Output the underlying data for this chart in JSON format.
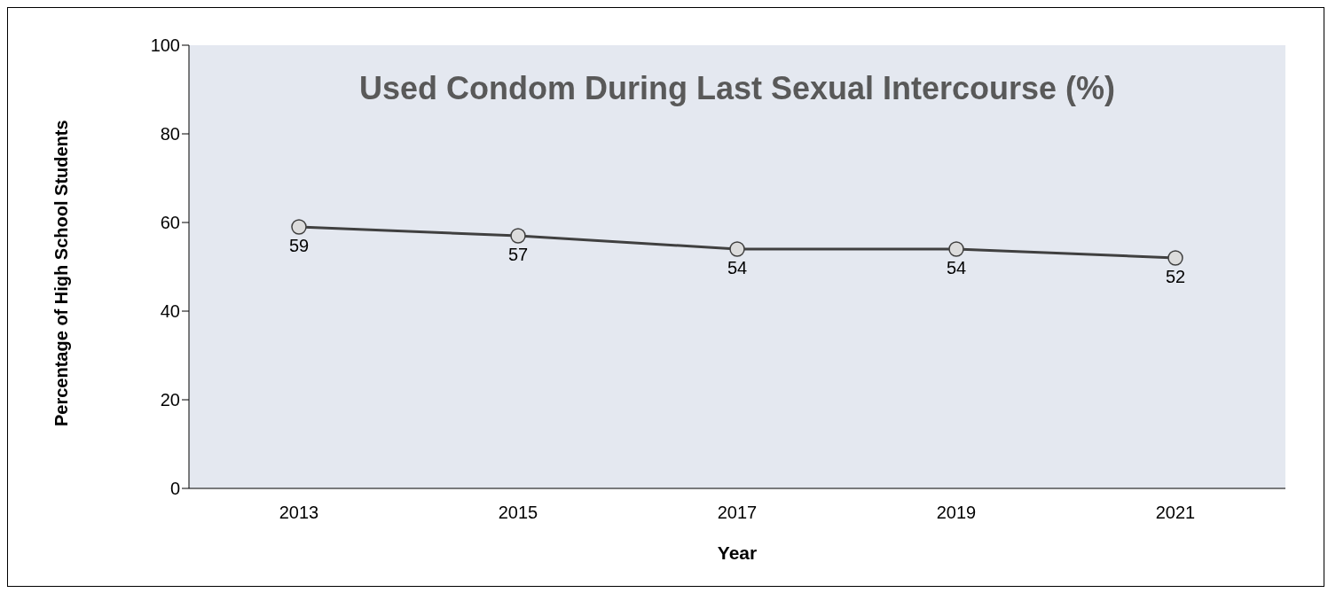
{
  "chart_data": {
    "type": "line",
    "title": "Used Condom During Last Sexual Intercourse (%)",
    "xlabel": "Year",
    "ylabel": "Percentage of High School Students",
    "categories": [
      "2013",
      "2015",
      "2017",
      "2019",
      "2021"
    ],
    "series": [
      {
        "color": "#404040",
        "values": [
          59,
          57,
          54,
          54,
          52
        ]
      }
    ],
    "ylim": [
      0,
      100
    ],
    "yticks": [
      0,
      20,
      40,
      60,
      80,
      100
    ],
    "data_labels": true,
    "marker": "circle",
    "line_style": "solid"
  }
}
